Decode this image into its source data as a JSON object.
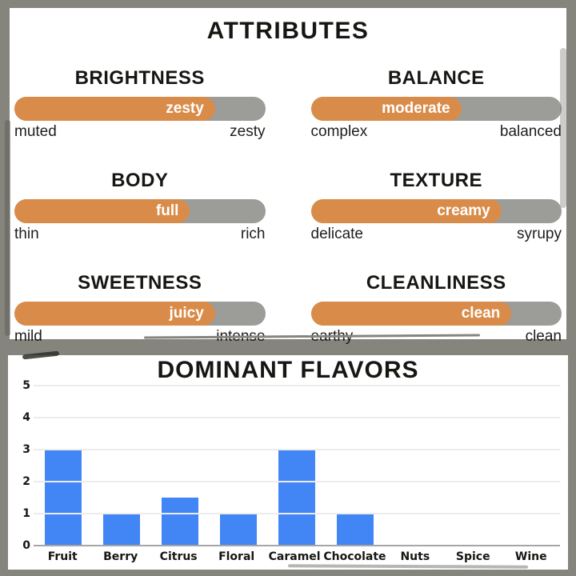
{
  "colors": {
    "accent_orange": "#D98C4A",
    "track_gray": "#9C9C98",
    "frame_gray": "#85857D",
    "bar_blue": "#4285F4",
    "gridline": "#ECECEC",
    "axis_line": "#A6A6A6",
    "ink": "#161613"
  },
  "attributes_panel": {
    "title": "ATTRIBUTES",
    "items": [
      {
        "name": "BRIGHTNESS",
        "value_label": "zesty",
        "fill_pct": 80,
        "left_label": "muted",
        "right_label": "zesty"
      },
      {
        "name": "BALANCE",
        "value_label": "moderate",
        "fill_pct": 60,
        "left_label": "complex",
        "right_label": "balanced"
      },
      {
        "name": "BODY",
        "value_label": "full",
        "fill_pct": 70,
        "left_label": "thin",
        "right_label": "rich"
      },
      {
        "name": "TEXTURE",
        "value_label": "creamy",
        "fill_pct": 76,
        "left_label": "delicate",
        "right_label": "syrupy"
      },
      {
        "name": "SWEETNESS",
        "value_label": "juicy",
        "fill_pct": 80,
        "left_label": "mild",
        "right_label": "intense"
      },
      {
        "name": "CLEANLINESS",
        "value_label": "clean",
        "fill_pct": 80,
        "left_label": "earthy",
        "right_label": "clean"
      }
    ]
  },
  "chart_data": {
    "type": "bar",
    "title": "DOMINANT FLAVORS",
    "categories": [
      "Fruit",
      "Berry",
      "Citrus",
      "Floral",
      "Caramel",
      "Chocolate",
      "Nuts",
      "Spice",
      "Wine"
    ],
    "values": [
      3,
      1,
      1.5,
      1,
      3,
      1,
      0,
      0,
      0
    ],
    "xlabel": "",
    "ylabel": "",
    "ylim": [
      0,
      5
    ],
    "yticks": [
      0,
      1,
      2,
      3,
      4,
      5
    ],
    "grid": true,
    "legend": "none",
    "bar_color": "#4285F4"
  }
}
